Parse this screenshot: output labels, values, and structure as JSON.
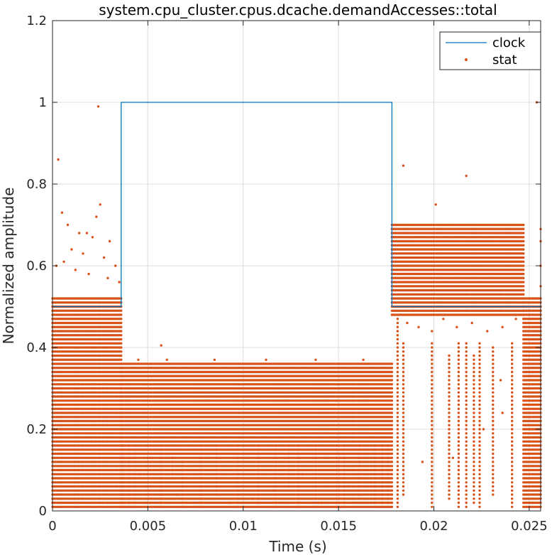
{
  "chart_data": {
    "type": "line",
    "title": "system.cpu_cluster.cpus.dcache.demandAccesses::total",
    "xlabel": "Time (s)",
    "ylabel": "Normalized amplitude",
    "xlim": [
      0,
      0.0256
    ],
    "ylim": [
      0,
      1.2
    ],
    "x_ticks": [
      0,
      0.005,
      0.01,
      0.015,
      0.02,
      0.025
    ],
    "x_tick_labels": [
      "0",
      "0.005",
      "0.01",
      "0.015",
      "0.02",
      "0.025"
    ],
    "y_ticks": [
      0,
      0.2,
      0.4,
      0.6,
      0.8,
      1,
      1.2
    ],
    "y_tick_labels": [
      "0",
      "0.2",
      "0.4",
      "0.6",
      "0.8",
      "1",
      "1.2"
    ],
    "grid": true,
    "legend_position": "top-right",
    "series": [
      {
        "name": "clock",
        "kind": "line",
        "color": "#0072BD",
        "x": [
          0,
          0.0036,
          0.0036,
          0.0178,
          0.0178,
          0.0256
        ],
        "y": [
          0.5,
          0.5,
          1,
          1,
          0.5,
          0.5
        ]
      },
      {
        "name": "stat",
        "kind": "scatter",
        "color": "#D95319",
        "segments": [
          {
            "x_range": [
              0,
              0.0036
            ],
            "level_range": [
              0.01,
              0.52
            ],
            "level_step": 0.01,
            "points_per_level": 45
          },
          {
            "x_range": [
              0.0036,
              0.0178
            ],
            "level_range": [
              0.01,
              0.36
            ],
            "level_step": 0.01,
            "points_per_level": 185
          },
          {
            "x_range": [
              0.0178,
              0.0247
            ],
            "level_range": [
              0.48,
              0.7
            ],
            "level_step": 0.01,
            "points_per_level": 90
          },
          {
            "x_range": [
              0.0247,
              0.0256
            ],
            "level_range": [
              0.01,
              0.52
            ],
            "level_step": 0.01,
            "points_per_level": 12
          }
        ],
        "outliers": [
          [
            0.0003,
            0.86
          ],
          [
            0.0024,
            0.99
          ],
          [
            0.0025,
            0.75
          ],
          [
            0.0023,
            0.72
          ],
          [
            0.0005,
            0.73
          ],
          [
            0.0008,
            0.7
          ],
          [
            0.0014,
            0.68
          ],
          [
            0.0018,
            0.68
          ],
          [
            0.0021,
            0.67
          ],
          [
            0.003,
            0.66
          ],
          [
            0.001,
            0.64
          ],
          [
            0.0016,
            0.63
          ],
          [
            0.0027,
            0.62
          ],
          [
            0.0033,
            0.6
          ],
          [
            0.0006,
            0.61
          ],
          [
            0.0012,
            0.59
          ],
          [
            0.0019,
            0.58
          ],
          [
            0.0029,
            0.57
          ],
          [
            0.0035,
            0.56
          ],
          [
            0.0002,
            0.6
          ],
          [
            0.0057,
            0.405
          ],
          [
            0.0045,
            0.37
          ],
          [
            0.006,
            0.37
          ],
          [
            0.0085,
            0.37
          ],
          [
            0.0112,
            0.37
          ],
          [
            0.0138,
            0.37
          ],
          [
            0.0163,
            0.37
          ],
          [
            0.0184,
            0.845
          ],
          [
            0.0201,
            0.75
          ],
          [
            0.0217,
            0.82
          ],
          [
            0.0254,
            1.0
          ],
          [
            0.0256,
            0.69
          ],
          [
            0.0256,
            0.66
          ],
          [
            0.0256,
            0.6
          ],
          [
            0.0256,
            0.55
          ],
          [
            0.0186,
            0.46
          ],
          [
            0.0192,
            0.45
          ],
          [
            0.0199,
            0.44
          ],
          [
            0.0205,
            0.47
          ],
          [
            0.0212,
            0.45
          ],
          [
            0.022,
            0.46
          ],
          [
            0.0228,
            0.44
          ],
          [
            0.0236,
            0.45
          ],
          [
            0.0243,
            0.47
          ],
          [
            0.0236,
            0.24
          ],
          [
            0.0226,
            0.2
          ],
          [
            0.021,
            0.13
          ],
          [
            0.0194,
            0.12
          ],
          [
            0.0235,
            0.32
          ],
          [
            0.0065,
            0.04
          ],
          [
            0.0093,
            0.02
          ],
          [
            0.0105,
            0.03
          ],
          [
            0.0116,
            0.05
          ],
          [
            0.0141,
            0.02
          ],
          [
            0.0155,
            0.06
          ],
          [
            0.0046,
            0.09
          ],
          [
            0.007,
            0.08
          ],
          [
            0.0131,
            0.09
          ],
          [
            0.0167,
            0.07
          ]
        ],
        "columns": [
          {
            "x": 0.0037,
            "y_range": [
              0.01,
              0.16
            ]
          },
          {
            "x": 0.004,
            "y_range": [
              0.01,
              0.16
            ]
          },
          {
            "x": 0.0043,
            "y_range": [
              0.01,
              0.16
            ]
          },
          {
            "x": 0.005,
            "y_range": [
              0.02,
              0.16
            ]
          },
          {
            "x": 0.0057,
            "y_range": [
              0.01,
              0.16
            ]
          },
          {
            "x": 0.0063,
            "y_range": [
              0.08,
              0.13
            ]
          },
          {
            "x": 0.0068,
            "y_range": [
              0.01,
              0.12
            ]
          },
          {
            "x": 0.0078,
            "y_range": [
              0.01,
              0.16
            ]
          },
          {
            "x": 0.0086,
            "y_range": [
              0.04,
              0.16
            ]
          },
          {
            "x": 0.0097,
            "y_range": [
              0.01,
              0.16
            ]
          },
          {
            "x": 0.0108,
            "y_range": [
              0.02,
              0.16
            ]
          },
          {
            "x": 0.0117,
            "y_range": [
              0.01,
              0.16
            ]
          },
          {
            "x": 0.0124,
            "y_range": [
              0.06,
              0.16
            ]
          },
          {
            "x": 0.0129,
            "y_range": [
              0.01,
              0.16
            ]
          },
          {
            "x": 0.0138,
            "y_range": [
              0.03,
              0.16
            ]
          },
          {
            "x": 0.0149,
            "y_range": [
              0.01,
              0.16
            ]
          },
          {
            "x": 0.0153,
            "y_range": [
              0.01,
              0.16
            ]
          },
          {
            "x": 0.0161,
            "y_range": [
              0.04,
              0.16
            ]
          },
          {
            "x": 0.0169,
            "y_range": [
              0.01,
              0.16
            ]
          },
          {
            "x": 0.0173,
            "y_range": [
              0.01,
              0.16
            ]
          },
          {
            "x": 0.0176,
            "y_range": [
              0.01,
              0.16
            ]
          },
          {
            "x": 0.0181,
            "y_range": [
              0.01,
              0.47
            ]
          },
          {
            "x": 0.0184,
            "y_range": [
              0.04,
              0.41
            ]
          },
          {
            "x": 0.0199,
            "y_range": [
              0.01,
              0.41
            ]
          },
          {
            "x": 0.0208,
            "y_range": [
              0.03,
              0.38
            ]
          },
          {
            "x": 0.0213,
            "y_range": [
              0.01,
              0.41
            ]
          },
          {
            "x": 0.0217,
            "y_range": [
              0.01,
              0.41
            ]
          },
          {
            "x": 0.0221,
            "y_range": [
              0.02,
              0.38
            ]
          },
          {
            "x": 0.0224,
            "y_range": [
              0.01,
              0.41
            ]
          },
          {
            "x": 0.0231,
            "y_range": [
              0.04,
              0.4
            ]
          },
          {
            "x": 0.0241,
            "y_range": [
              0.01,
              0.41
            ]
          }
        ]
      }
    ]
  }
}
